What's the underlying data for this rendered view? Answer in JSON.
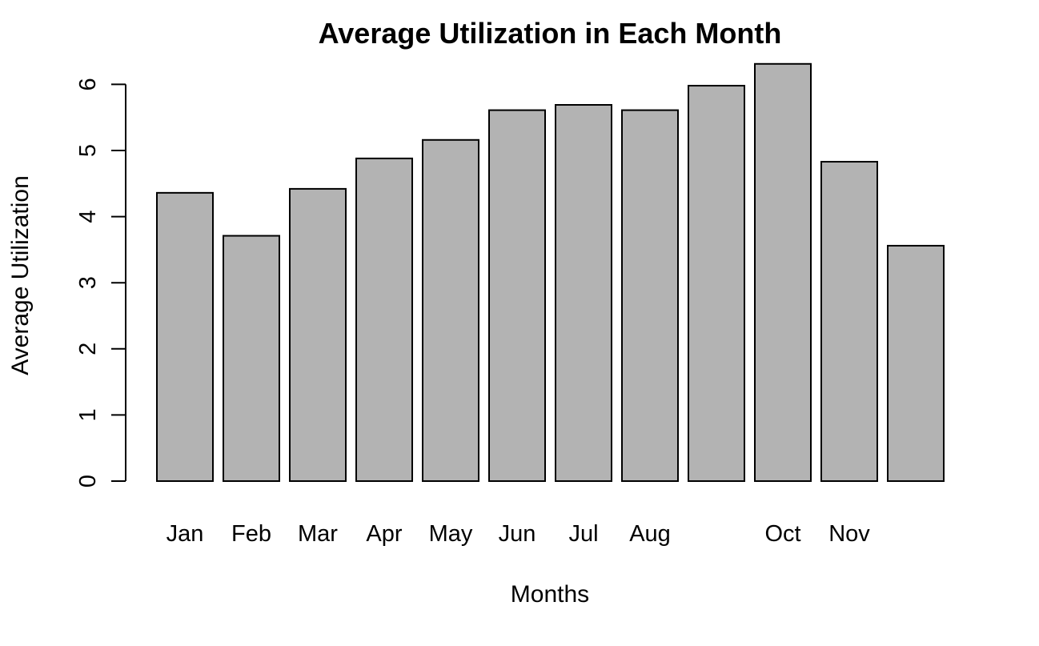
{
  "chart_data": {
    "type": "bar",
    "title": "Average Utilization in Each Month",
    "xlabel": "Months",
    "ylabel": "Average Utilization",
    "categories": [
      "Jan",
      "Feb",
      "Mar",
      "Apr",
      "May",
      "Jun",
      "Jul",
      "Aug",
      "",
      "Oct",
      "Nov",
      ""
    ],
    "values": [
      4.36,
      3.71,
      4.42,
      4.88,
      5.16,
      5.61,
      5.69,
      5.61,
      5.98,
      6.31,
      4.83,
      3.56
    ],
    "ylim": [
      0,
      6.3
    ],
    "yticks": [
      0,
      1,
      2,
      3,
      4,
      5,
      6
    ],
    "grid": false,
    "legend": "none",
    "colors": {
      "bar_fill": "#b3b3b3",
      "bar_stroke": "#000000"
    }
  }
}
